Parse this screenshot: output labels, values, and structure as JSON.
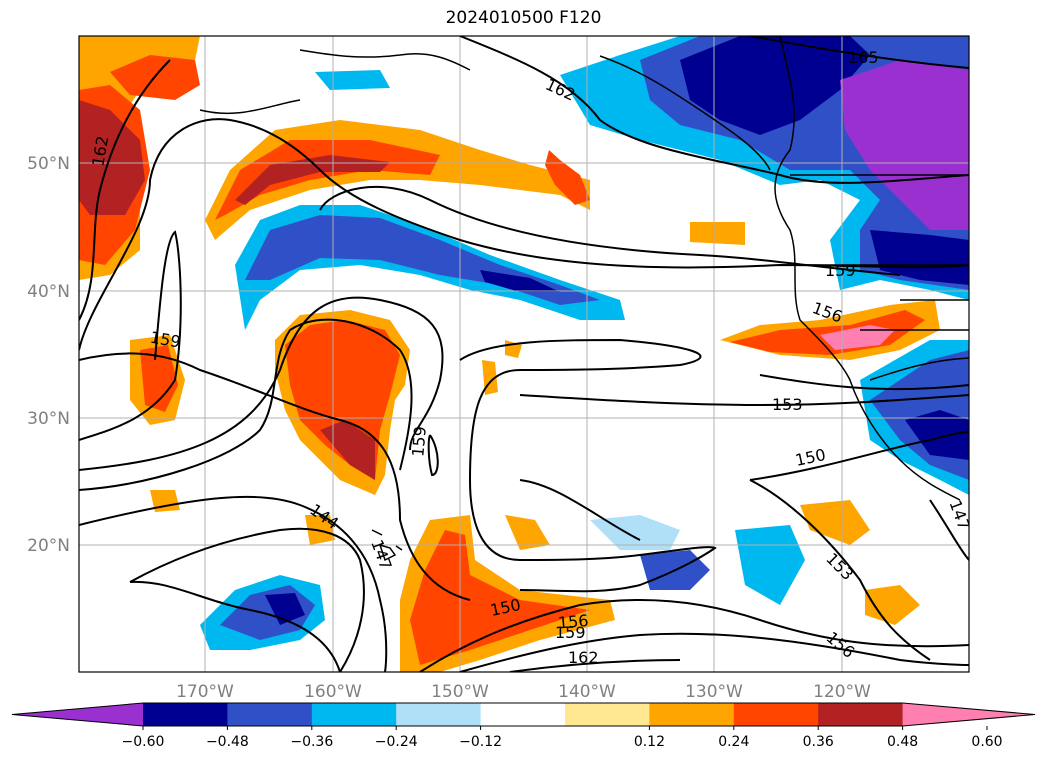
{
  "title": "2024010500 F120",
  "map": {
    "lon_labels": [
      "170°W",
      "160°W",
      "150°W",
      "140°W",
      "130°W",
      "120°W"
    ],
    "lat_labels": [
      "50°N",
      "40°N",
      "30°N",
      "20°N"
    ],
    "contour_labels": [
      "165",
      "162",
      "162",
      "159",
      "159",
      "159",
      "156",
      "156",
      "153",
      "153",
      "150",
      "150",
      "147",
      "147",
      "144",
      "156",
      "159",
      "162"
    ]
  },
  "colorbar": {
    "ticks": [
      "−0.60",
      "−0.48",
      "−0.36",
      "−0.24",
      "−0.12",
      "0.12",
      "0.24",
      "0.36",
      "0.48",
      "0.60"
    ],
    "colors": [
      "#9b30d0",
      "#000090",
      "#3050c8",
      "#00b8f0",
      "#b0e0f8",
      "#ffffff",
      "#ffe890",
      "#ffa500",
      "#ff4500",
      "#b22222",
      "#ff80b0"
    ]
  }
}
